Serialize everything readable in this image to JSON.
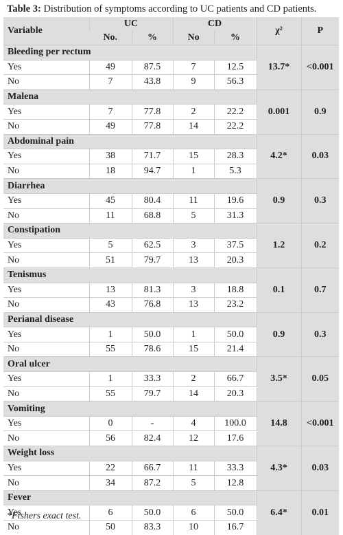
{
  "caption": {
    "label": "Table 3:",
    "text": " Distribution of symptoms according to UC patients and CD patients."
  },
  "header": {
    "variable": "Variable",
    "uc": "UC",
    "cd": "CD",
    "chi": "χ²",
    "p": "P",
    "uc_no": "No.",
    "uc_pct": "%",
    "cd_no": "No",
    "cd_pct": "%"
  },
  "groups": [
    {
      "name": "Bleeding per rectum",
      "chi": "13.7*",
      "p": "<0.001",
      "p_bold": true,
      "rows": [
        {
          "label": "Yes",
          "uc_no": "49",
          "uc_pct": "87.5",
          "cd_no": "7",
          "cd_pct": "12.5"
        },
        {
          "label": "No",
          "uc_no": "7",
          "uc_pct": "43.8",
          "cd_no": "9",
          "cd_pct": "56.3"
        }
      ]
    },
    {
      "name": "Malena",
      "chi": "0.001",
      "p": "0.9",
      "p_bold": false,
      "rows": [
        {
          "label": "Yes",
          "uc_no": "7",
          "uc_pct": "77.8",
          "cd_no": "2",
          "cd_pct": "22.2"
        },
        {
          "label": "No",
          "uc_no": "49",
          "uc_pct": "77.8",
          "cd_no": "14",
          "cd_pct": "22.2"
        }
      ]
    },
    {
      "name": "Abdominal pain",
      "chi": "4.2*",
      "p": "0.03",
      "p_bold": true,
      "rows": [
        {
          "label": "Yes",
          "uc_no": "38",
          "uc_pct": "71.7",
          "cd_no": "15",
          "cd_pct": "28.3"
        },
        {
          "label": "No",
          "uc_no": "18",
          "uc_pct": "94.7",
          "cd_no": "1",
          "cd_pct": "5.3"
        }
      ]
    },
    {
      "name": "Diarrhea",
      "chi": "0.9",
      "p": "0.3",
      "p_bold": false,
      "rows": [
        {
          "label": "Yes",
          "uc_no": "45",
          "uc_pct": "80.4",
          "cd_no": "11",
          "cd_pct": "19.6"
        },
        {
          "label": "No",
          "uc_no": "11",
          "uc_pct": "68.8",
          "cd_no": "5",
          "cd_pct": "31.3"
        }
      ]
    },
    {
      "name": "Constipation",
      "chi": "1.2",
      "p": "0.2",
      "p_bold": false,
      "rows": [
        {
          "label": "Yes",
          "uc_no": "5",
          "uc_pct": "62.5",
          "cd_no": "3",
          "cd_pct": "37.5"
        },
        {
          "label": "No",
          "uc_no": "51",
          "uc_pct": "79.7",
          "cd_no": "13",
          "cd_pct": "20.3"
        }
      ]
    },
    {
      "name": "Tenismus",
      "chi": "0.1",
      "p": "0.7",
      "p_bold": false,
      "rows": [
        {
          "label": "Yes",
          "uc_no": "13",
          "uc_pct": "81.3",
          "cd_no": "3",
          "cd_pct": "18.8"
        },
        {
          "label": "No",
          "uc_no": "43",
          "uc_pct": "76.8",
          "cd_no": "13",
          "cd_pct": "23.2"
        }
      ]
    },
    {
      "name": "Perianal disease",
      "chi": "0.9",
      "p": "0.3",
      "p_bold": false,
      "rows": [
        {
          "label": "Yes",
          "uc_no": "1",
          "uc_pct": "50.0",
          "cd_no": "1",
          "cd_pct": "50.0"
        },
        {
          "label": "No",
          "uc_no": "55",
          "uc_pct": "78.6",
          "cd_no": "15",
          "cd_pct": "21.4"
        }
      ]
    },
    {
      "name": "Oral ulcer",
      "chi": "3.5*",
      "p": "0.05",
      "p_bold": true,
      "rows": [
        {
          "label": "Yes",
          "uc_no": "1",
          "uc_pct": "33.3",
          "cd_no": "2",
          "cd_pct": "66.7"
        },
        {
          "label": "No",
          "uc_no": "55",
          "uc_pct": "79.7",
          "cd_no": "14",
          "cd_pct": "20.3"
        }
      ]
    },
    {
      "name": "Vomiting",
      "chi": "14.8",
      "p": "<0.001",
      "p_bold": true,
      "rows": [
        {
          "label": "Yes",
          "uc_no": "0",
          "uc_pct": "-",
          "cd_no": "4",
          "cd_pct": "100.0"
        },
        {
          "label": "No",
          "uc_no": "56",
          "uc_pct": "82.4",
          "cd_no": "12",
          "cd_pct": "17.6"
        }
      ]
    },
    {
      "name": "Weight loss",
      "chi": "4.3*",
      "p": "0.03",
      "p_bold": true,
      "rows": [
        {
          "label": "Yes",
          "uc_no": "22",
          "uc_pct": "66.7",
          "cd_no": "11",
          "cd_pct": "33.3"
        },
        {
          "label": "No",
          "uc_no": "34",
          "uc_pct": "87.2",
          "cd_no": "5",
          "cd_pct": "12.8"
        }
      ]
    },
    {
      "name": "Fever",
      "chi": "6.4*",
      "p": "0.01",
      "p_bold": true,
      "rows": [
        {
          "label": "Yes",
          "uc_no": "6",
          "uc_pct": "50.0",
          "cd_no": "6",
          "cd_pct": "50.0"
        },
        {
          "label": "No",
          "uc_no": "50",
          "uc_pct": "83.3",
          "cd_no": "10",
          "cd_pct": "16.7"
        }
      ]
    }
  ],
  "footnote": "*Fishers exact test."
}
